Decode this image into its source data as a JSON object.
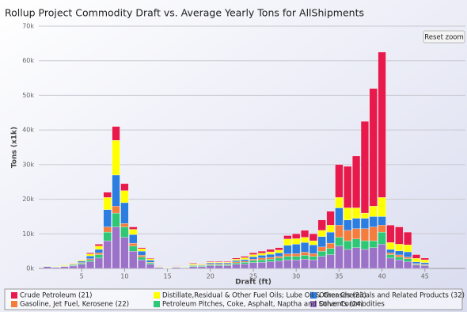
{
  "chart_data": {
    "type": "stacked-bar",
    "title": "Rollup Project Commodity Draft vs. Average Yearly Tons for AllShipments",
    "xlabel": "Draft (ft)",
    "ylabel": "Tons (x1k)",
    "button": "Reset zoom",
    "x": [
      1,
      2,
      3,
      4,
      5,
      6,
      7,
      8,
      9,
      10,
      11,
      12,
      13,
      14,
      15,
      16,
      17,
      18,
      19,
      20,
      21,
      22,
      23,
      24,
      25,
      26,
      27,
      28,
      29,
      30,
      31,
      32,
      33,
      34,
      35,
      36,
      37,
      38,
      39,
      40,
      41,
      42,
      43,
      44,
      45
    ],
    "xlim": [
      0,
      50
    ],
    "xticks": [
      5,
      10,
      15,
      20,
      25,
      30,
      35,
      40,
      45
    ],
    "ylim": [
      0,
      70000
    ],
    "yticks": [
      {
        "value": 0,
        "label": "0k"
      },
      {
        "value": 10000,
        "label": "10k"
      },
      {
        "value": 20000,
        "label": "20k"
      },
      {
        "value": 30000,
        "label": "30k"
      },
      {
        "value": 40000,
        "label": "40k"
      },
      {
        "value": 50000,
        "label": "50k"
      },
      {
        "value": 60000,
        "label": "60k"
      },
      {
        "value": 70000,
        "label": "70k"
      }
    ],
    "grid": true,
    "legend": "bottom",
    "series": [
      {
        "name": "Other Commodities",
        "color": "#9b72c8",
        "values": [
          500,
          300,
          500,
          700,
          1200,
          2000,
          3000,
          8000,
          12000,
          9000,
          5000,
          2500,
          1200,
          300,
          100,
          300,
          200,
          500,
          500,
          800,
          800,
          800,
          1200,
          1300,
          1700,
          1800,
          2000,
          2200,
          2500,
          2500,
          2700,
          2500,
          3500,
          4000,
          6500,
          5500,
          6000,
          5500,
          6000,
          7000,
          3000,
          2500,
          2000,
          1000,
          800
        ]
      },
      {
        "name": "Petroleum Pitches, Coke, Asphalt, Naptha and Solvents (24)",
        "color": "#2ec776",
        "values": [
          100,
          100,
          100,
          200,
          300,
          500,
          1000,
          2500,
          4000,
          3000,
          1500,
          800,
          400,
          100,
          0,
          100,
          100,
          200,
          200,
          300,
          300,
          300,
          400,
          500,
          600,
          700,
          700,
          800,
          1000,
          1000,
          1100,
          1000,
          1500,
          1800,
          2500,
          2500,
          2500,
          2500,
          2000,
          3500,
          1000,
          800,
          800,
          200,
          200
        ]
      },
      {
        "name": "Gasoline, Jet Fuel, Kerosene (22)",
        "color": "#f47c3c",
        "values": [
          0,
          0,
          100,
          100,
          200,
          300,
          500,
          1500,
          2000,
          1000,
          800,
          500,
          200,
          100,
          0,
          100,
          0,
          100,
          100,
          200,
          200,
          200,
          300,
          300,
          400,
          500,
          500,
          500,
          700,
          800,
          900,
          800,
          1200,
          1500,
          3500,
          3000,
          3000,
          3500,
          4000,
          2000,
          500,
          600,
          500,
          200,
          200
        ]
      },
      {
        "name": "Other Chemicals and Related Products (32)",
        "color": "#2b7de0",
        "values": [
          100,
          100,
          100,
          200,
          400,
          800,
          1000,
          5000,
          9000,
          6000,
          2500,
          1200,
          600,
          100,
          100,
          100,
          100,
          200,
          200,
          300,
          300,
          300,
          400,
          500,
          700,
          800,
          900,
          1000,
          2500,
          2700,
          2800,
          2500,
          3000,
          3200,
          5000,
          3000,
          3000,
          3000,
          3000,
          2500,
          1000,
          1200,
          1500,
          500,
          500
        ]
      },
      {
        "name": "Distillate,Residual & Other Fuel Oils; Lube Oil & Greases (23)",
        "color": "#ffff00",
        "values": [
          100,
          100,
          200,
          200,
          300,
          600,
          1000,
          3500,
          10000,
          3500,
          1500,
          700,
          400,
          100,
          100,
          100,
          100,
          300,
          200,
          200,
          200,
          200,
          400,
          500,
          600,
          600,
          700,
          800,
          1800,
          1600,
          1500,
          1200,
          1800,
          2000,
          3000,
          3500,
          3000,
          1500,
          3000,
          5500,
          2000,
          1900,
          2000,
          1000,
          800
        ]
      },
      {
        "name": "Crude Petroleum (21)",
        "color": "#e81a4b",
        "values": [
          0,
          0,
          0,
          100,
          100,
          300,
          500,
          1500,
          4000,
          2000,
          700,
          300,
          200,
          100,
          0,
          100,
          0,
          200,
          100,
          200,
          200,
          200,
          300,
          400,
          500,
          600,
          700,
          700,
          1000,
          1400,
          2000,
          2000,
          3000,
          4000,
          9500,
          12000,
          15000,
          26500,
          34000,
          42000,
          5000,
          5000,
          3700,
          1100,
          500
        ]
      }
    ]
  }
}
